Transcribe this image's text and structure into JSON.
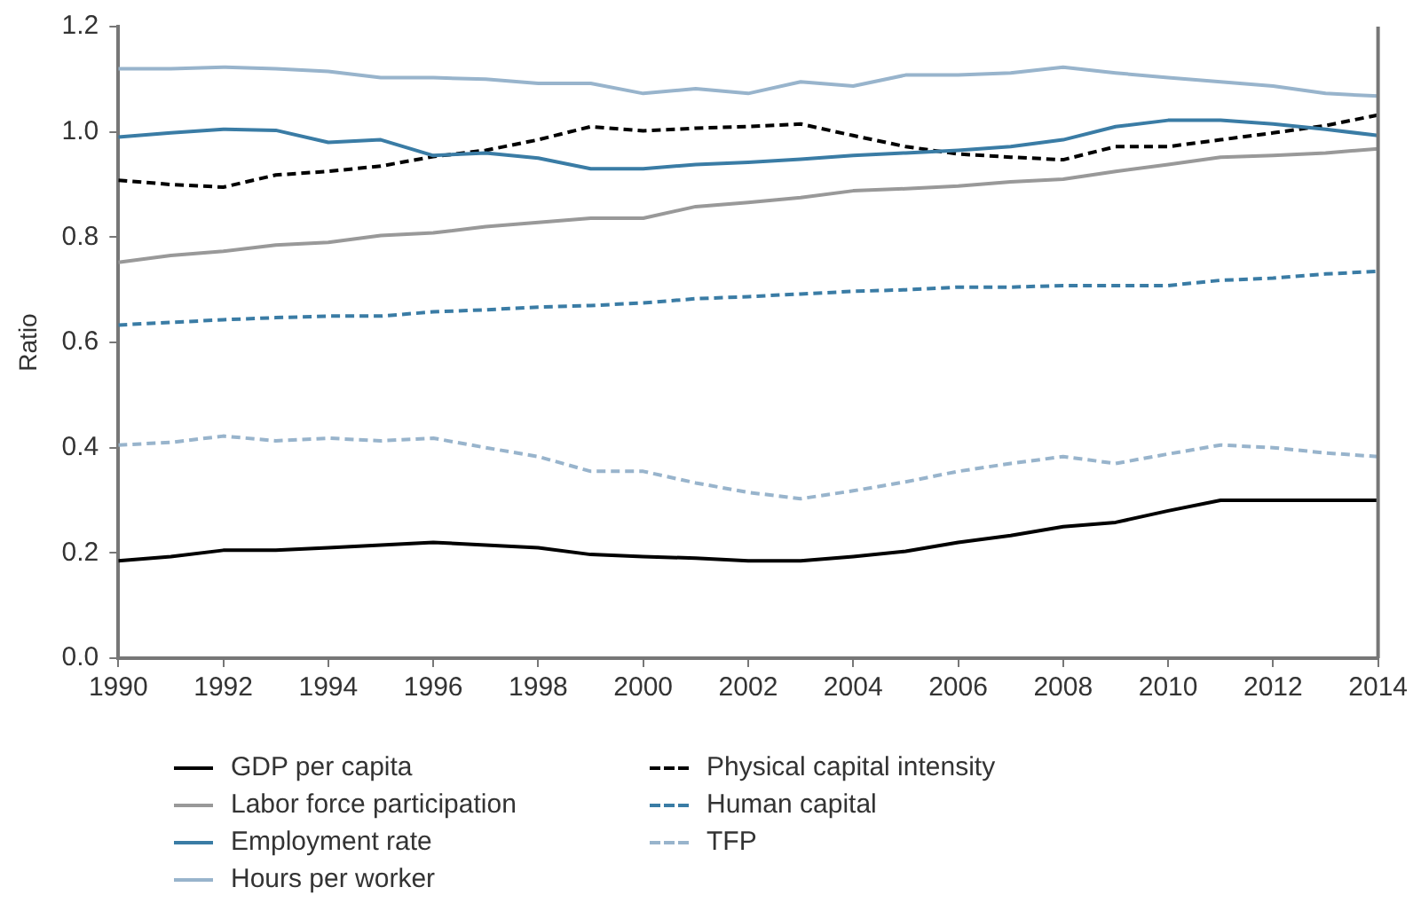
{
  "chart_data": {
    "type": "line",
    "ylabel": "Ratio",
    "x": [
      1990,
      1991,
      1992,
      1993,
      1994,
      1995,
      1996,
      1997,
      1998,
      1999,
      2000,
      2001,
      2002,
      2003,
      2004,
      2005,
      2006,
      2007,
      2008,
      2009,
      2010,
      2011,
      2012,
      2013,
      2014
    ],
    "xlim": [
      1990,
      2014
    ],
    "xticks": [
      1990,
      1992,
      1994,
      1996,
      1998,
      2000,
      2002,
      2004,
      2006,
      2008,
      2010,
      2012,
      2014
    ],
    "ylim": [
      0,
      1.2
    ],
    "yticks": [
      {
        "value": 0,
        "label": "0.0"
      },
      {
        "value": 0.2,
        "label": "0.2"
      },
      {
        "value": 0.4,
        "label": "0.4"
      },
      {
        "value": 0.6,
        "label": "0.6"
      },
      {
        "value": 0.8,
        "label": "0.8"
      },
      {
        "value": 1,
        "label": "1.0"
      },
      {
        "value": 1.2,
        "label": "1.2"
      }
    ],
    "grid": false,
    "legend": "bottom",
    "marker": "none",
    "series": [
      {
        "name": "GDP per capita",
        "color": "#000000",
        "line_style": "solid",
        "values": [
          0.185,
          0.193,
          0.205,
          0.205,
          0.21,
          0.215,
          0.22,
          0.215,
          0.21,
          0.197,
          0.193,
          0.19,
          0.185,
          0.185,
          0.193,
          0.203,
          0.22,
          0.233,
          0.25,
          0.258,
          0.28,
          0.3,
          0.3,
          0.3,
          0.3
        ]
      },
      {
        "name": "Labor force participation",
        "color": "#999999",
        "line_style": "solid",
        "values": [
          0.752,
          0.765,
          0.773,
          0.785,
          0.79,
          0.803,
          0.808,
          0.82,
          0.828,
          0.836,
          0.836,
          0.858,
          0.866,
          0.875,
          0.888,
          0.892,
          0.897,
          0.905,
          0.91,
          0.925,
          0.938,
          0.952,
          0.955,
          0.96,
          0.968
        ]
      },
      {
        "name": "Employment rate",
        "color": "#3a7ca5",
        "line_style": "solid",
        "values": [
          0.99,
          0.998,
          1.005,
          1.003,
          0.98,
          0.985,
          0.955,
          0.96,
          0.95,
          0.93,
          0.93,
          0.938,
          0.942,
          0.948,
          0.955,
          0.96,
          0.965,
          0.972,
          0.985,
          1.01,
          1.022,
          1.022,
          1.015,
          1.005,
          0.993
        ]
      },
      {
        "name": "Hours per worker",
        "color": "#98b4cc",
        "line_style": "solid",
        "values": [
          1.12,
          1.12,
          1.123,
          1.12,
          1.115,
          1.103,
          1.103,
          1.1,
          1.092,
          1.092,
          1.073,
          1.082,
          1.073,
          1.095,
          1.087,
          1.108,
          1.108,
          1.112,
          1.123,
          1.112,
          1.103,
          1.095,
          1.087,
          1.073,
          1.068
        ]
      },
      {
        "name": "Physical capital intensity",
        "color": "#000000",
        "line_style": "dashed",
        "values": [
          0.908,
          0.9,
          0.895,
          0.918,
          0.925,
          0.935,
          0.953,
          0.965,
          0.985,
          1.01,
          1.002,
          1.007,
          1.01,
          1.015,
          0.993,
          0.972,
          0.958,
          0.952,
          0.947,
          0.972,
          0.972,
          0.985,
          0.998,
          1.012,
          1.032
        ]
      },
      {
        "name": "Human capital",
        "color": "#3a7ca5",
        "line_style": "dashed",
        "values": [
          0.633,
          0.638,
          0.643,
          0.647,
          0.65,
          0.65,
          0.658,
          0.662,
          0.667,
          0.67,
          0.675,
          0.683,
          0.687,
          0.692,
          0.697,
          0.7,
          0.705,
          0.705,
          0.708,
          0.708,
          0.708,
          0.718,
          0.722,
          0.73,
          0.735
        ]
      },
      {
        "name": "TFP",
        "color": "#98b4cc",
        "line_style": "dashed",
        "values": [
          0.405,
          0.41,
          0.422,
          0.413,
          0.418,
          0.413,
          0.418,
          0.4,
          0.383,
          0.355,
          0.355,
          0.333,
          0.315,
          0.303,
          0.318,
          0.335,
          0.355,
          0.37,
          0.383,
          0.37,
          0.388,
          0.405,
          0.4,
          0.39,
          0.383
        ]
      }
    ]
  }
}
